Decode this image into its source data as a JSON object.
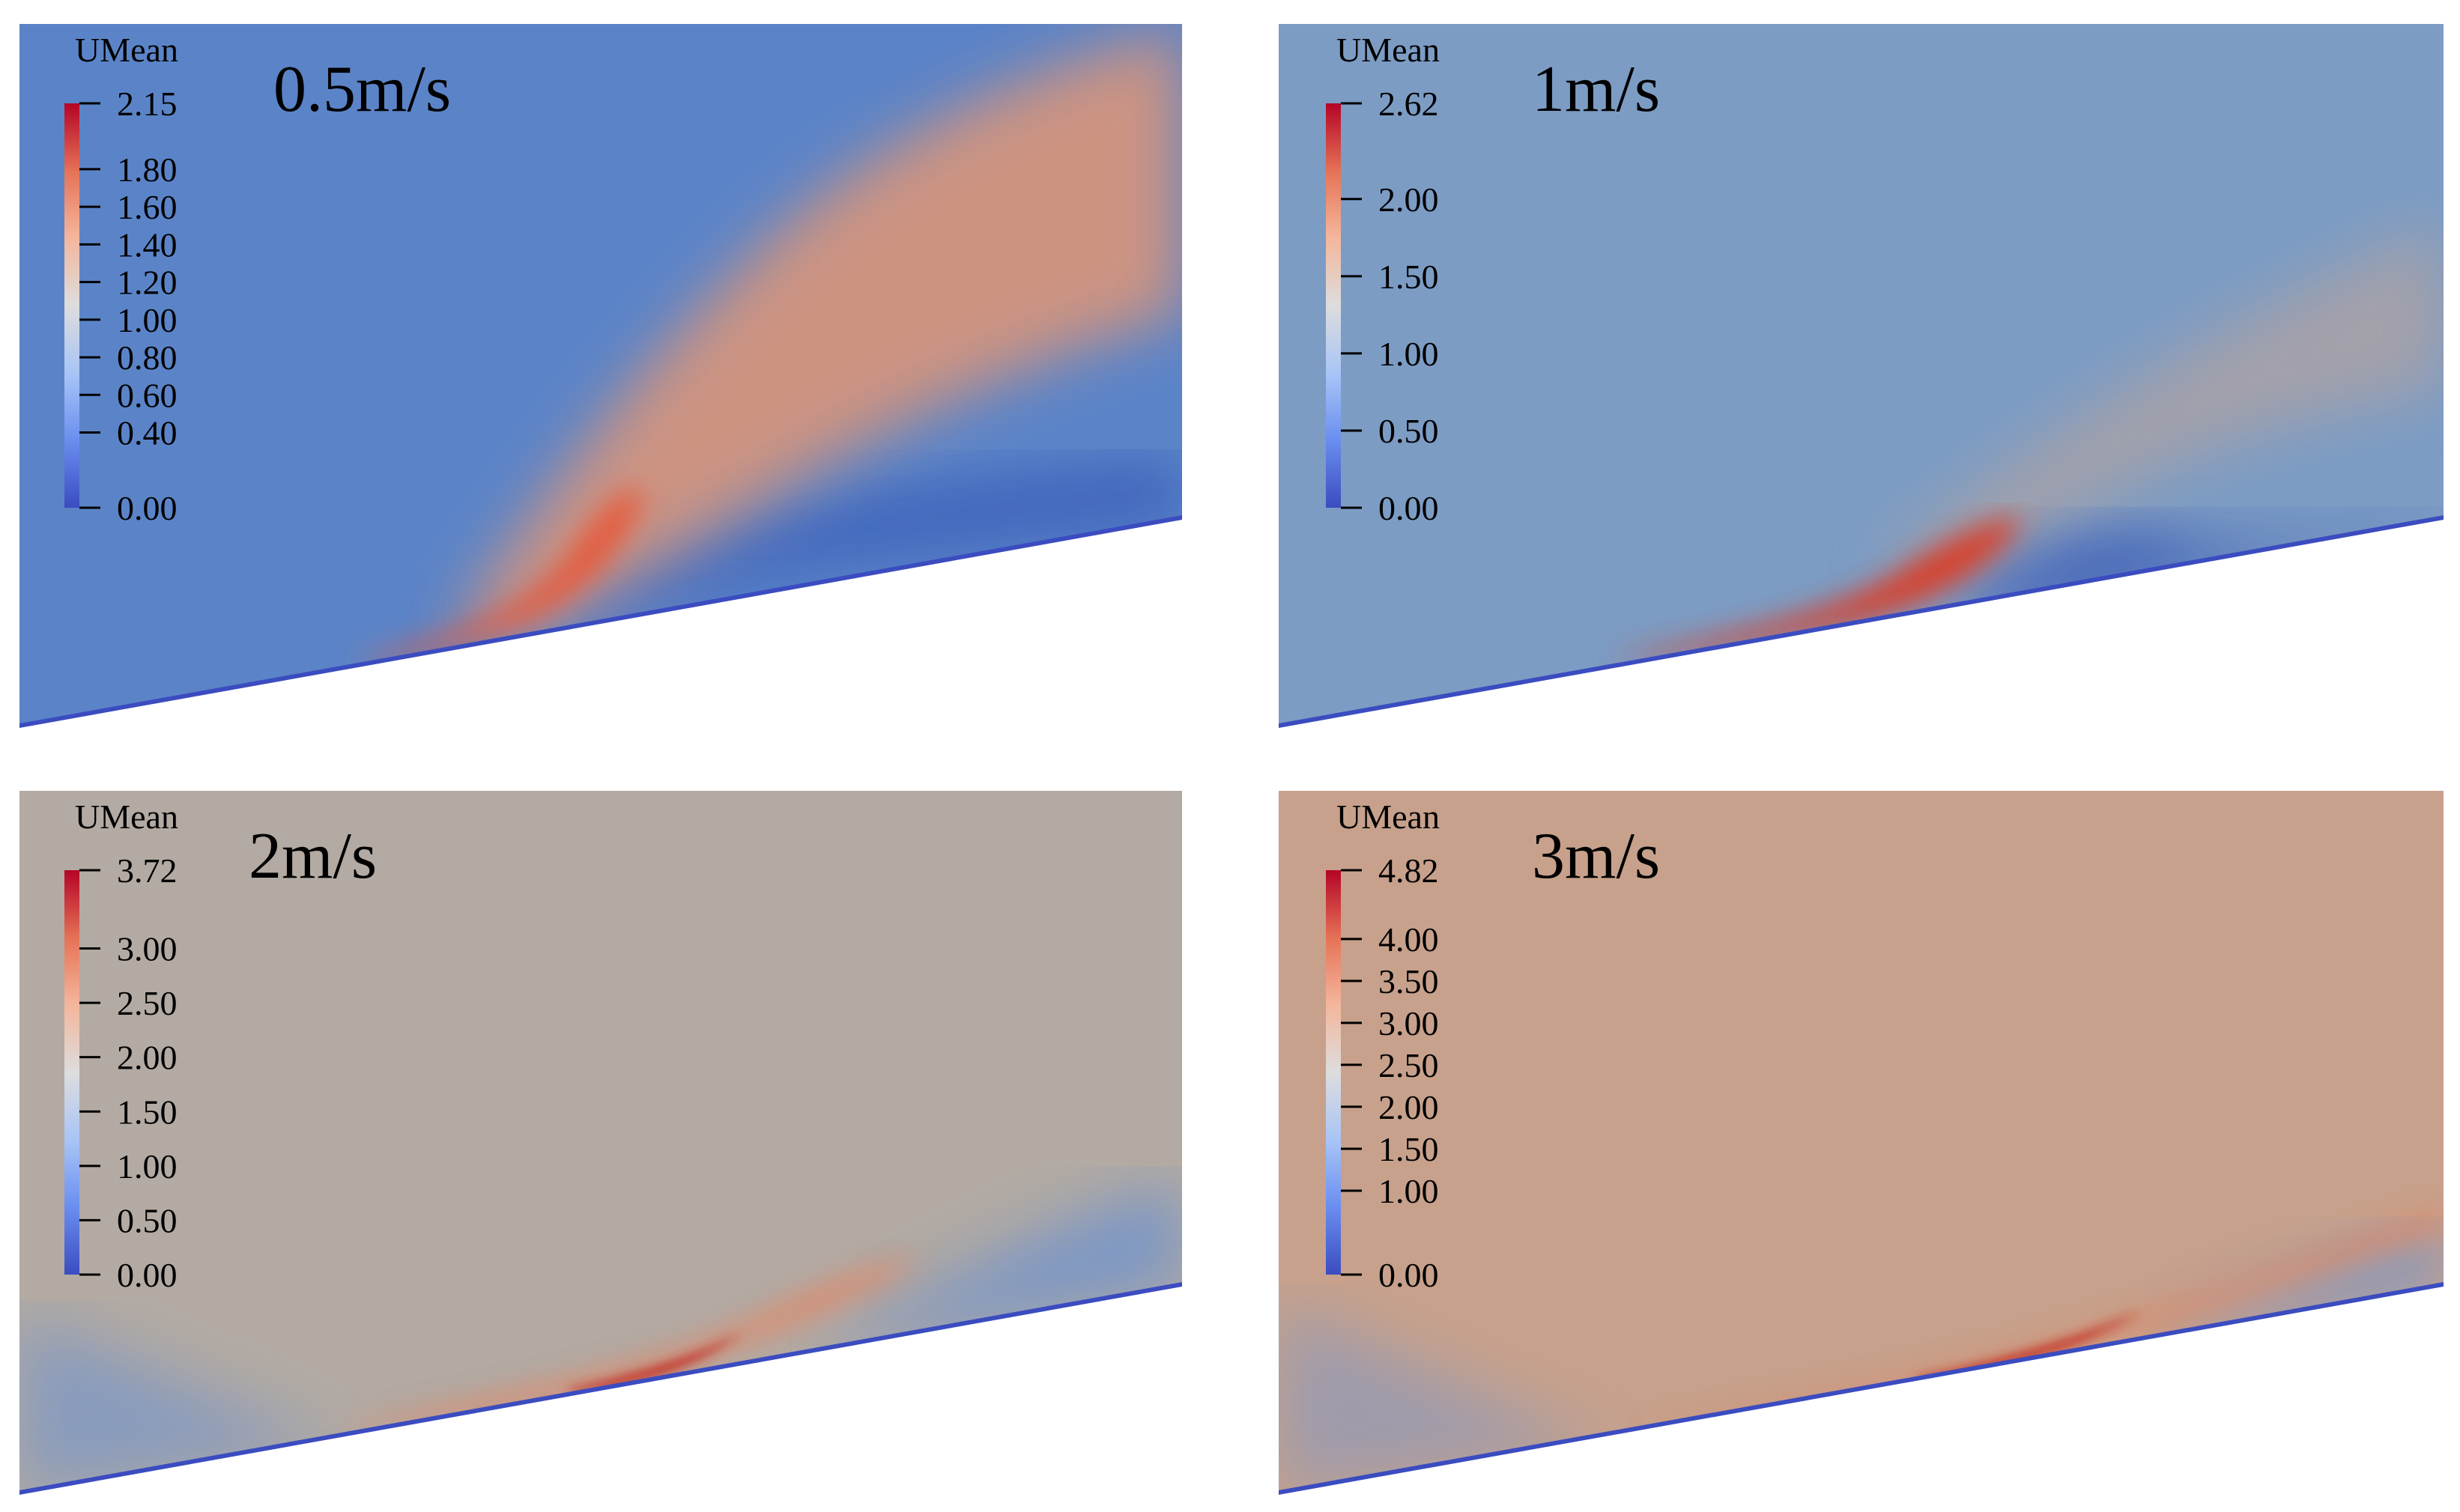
{
  "panels": [
    {
      "id": "p05",
      "title": "0.5m/s",
      "field_label": "UMean",
      "legend_max": 2.15,
      "legend_ticks": [
        "1.80",
        "1.60",
        "1.40",
        "1.20",
        "1.00",
        "0.80",
        "0.60",
        "0.40",
        "0.00"
      ],
      "legend_max_label": "2.15",
      "background_color": "#5b84c8",
      "jet_color": "#e55a3c",
      "plume_color": "#d9957a",
      "wake_color": "#3558b8"
    },
    {
      "id": "p1",
      "title": "1m/s",
      "field_label": "UMean",
      "legend_max": 2.62,
      "legend_ticks": [
        "2.00",
        "1.50",
        "1.00",
        "0.50",
        "0.00"
      ],
      "legend_max_label": "2.62",
      "background_color": "#7c9cc4",
      "jet_color": "#d8402c",
      "plume_color": "#c4a595",
      "wake_color": "#3a5ab6"
    },
    {
      "id": "p2",
      "title": "2m/s",
      "field_label": "UMean",
      "legend_max": 3.72,
      "legend_ticks": [
        "3.00",
        "2.50",
        "2.00",
        "1.50",
        "1.00",
        "0.50",
        "0.00"
      ],
      "legend_max_label": "3.72",
      "background_color": "#b2aaa3",
      "jet_color": "#c42a22",
      "plume_color": "#dc8c70",
      "wake_color": "#6d92cf"
    },
    {
      "id": "p3",
      "title": "3m/s",
      "field_label": "UMean",
      "legend_max": 4.82,
      "legend_ticks": [
        "4.00",
        "3.50",
        "3.00",
        "2.50",
        "2.00",
        "1.50",
        "1.00",
        "0.00"
      ],
      "legend_max_label": "4.82",
      "background_color": "#c7a18c",
      "jet_color": "#c3281f",
      "plume_color": "#d98a6c",
      "wake_color": "#6e95d1"
    }
  ],
  "colormap": [
    "#3b4cc0",
    "#6b8ff0",
    "#a8c4f6",
    "#dddddd",
    "#f4b59b",
    "#e67357",
    "#b40426"
  ]
}
